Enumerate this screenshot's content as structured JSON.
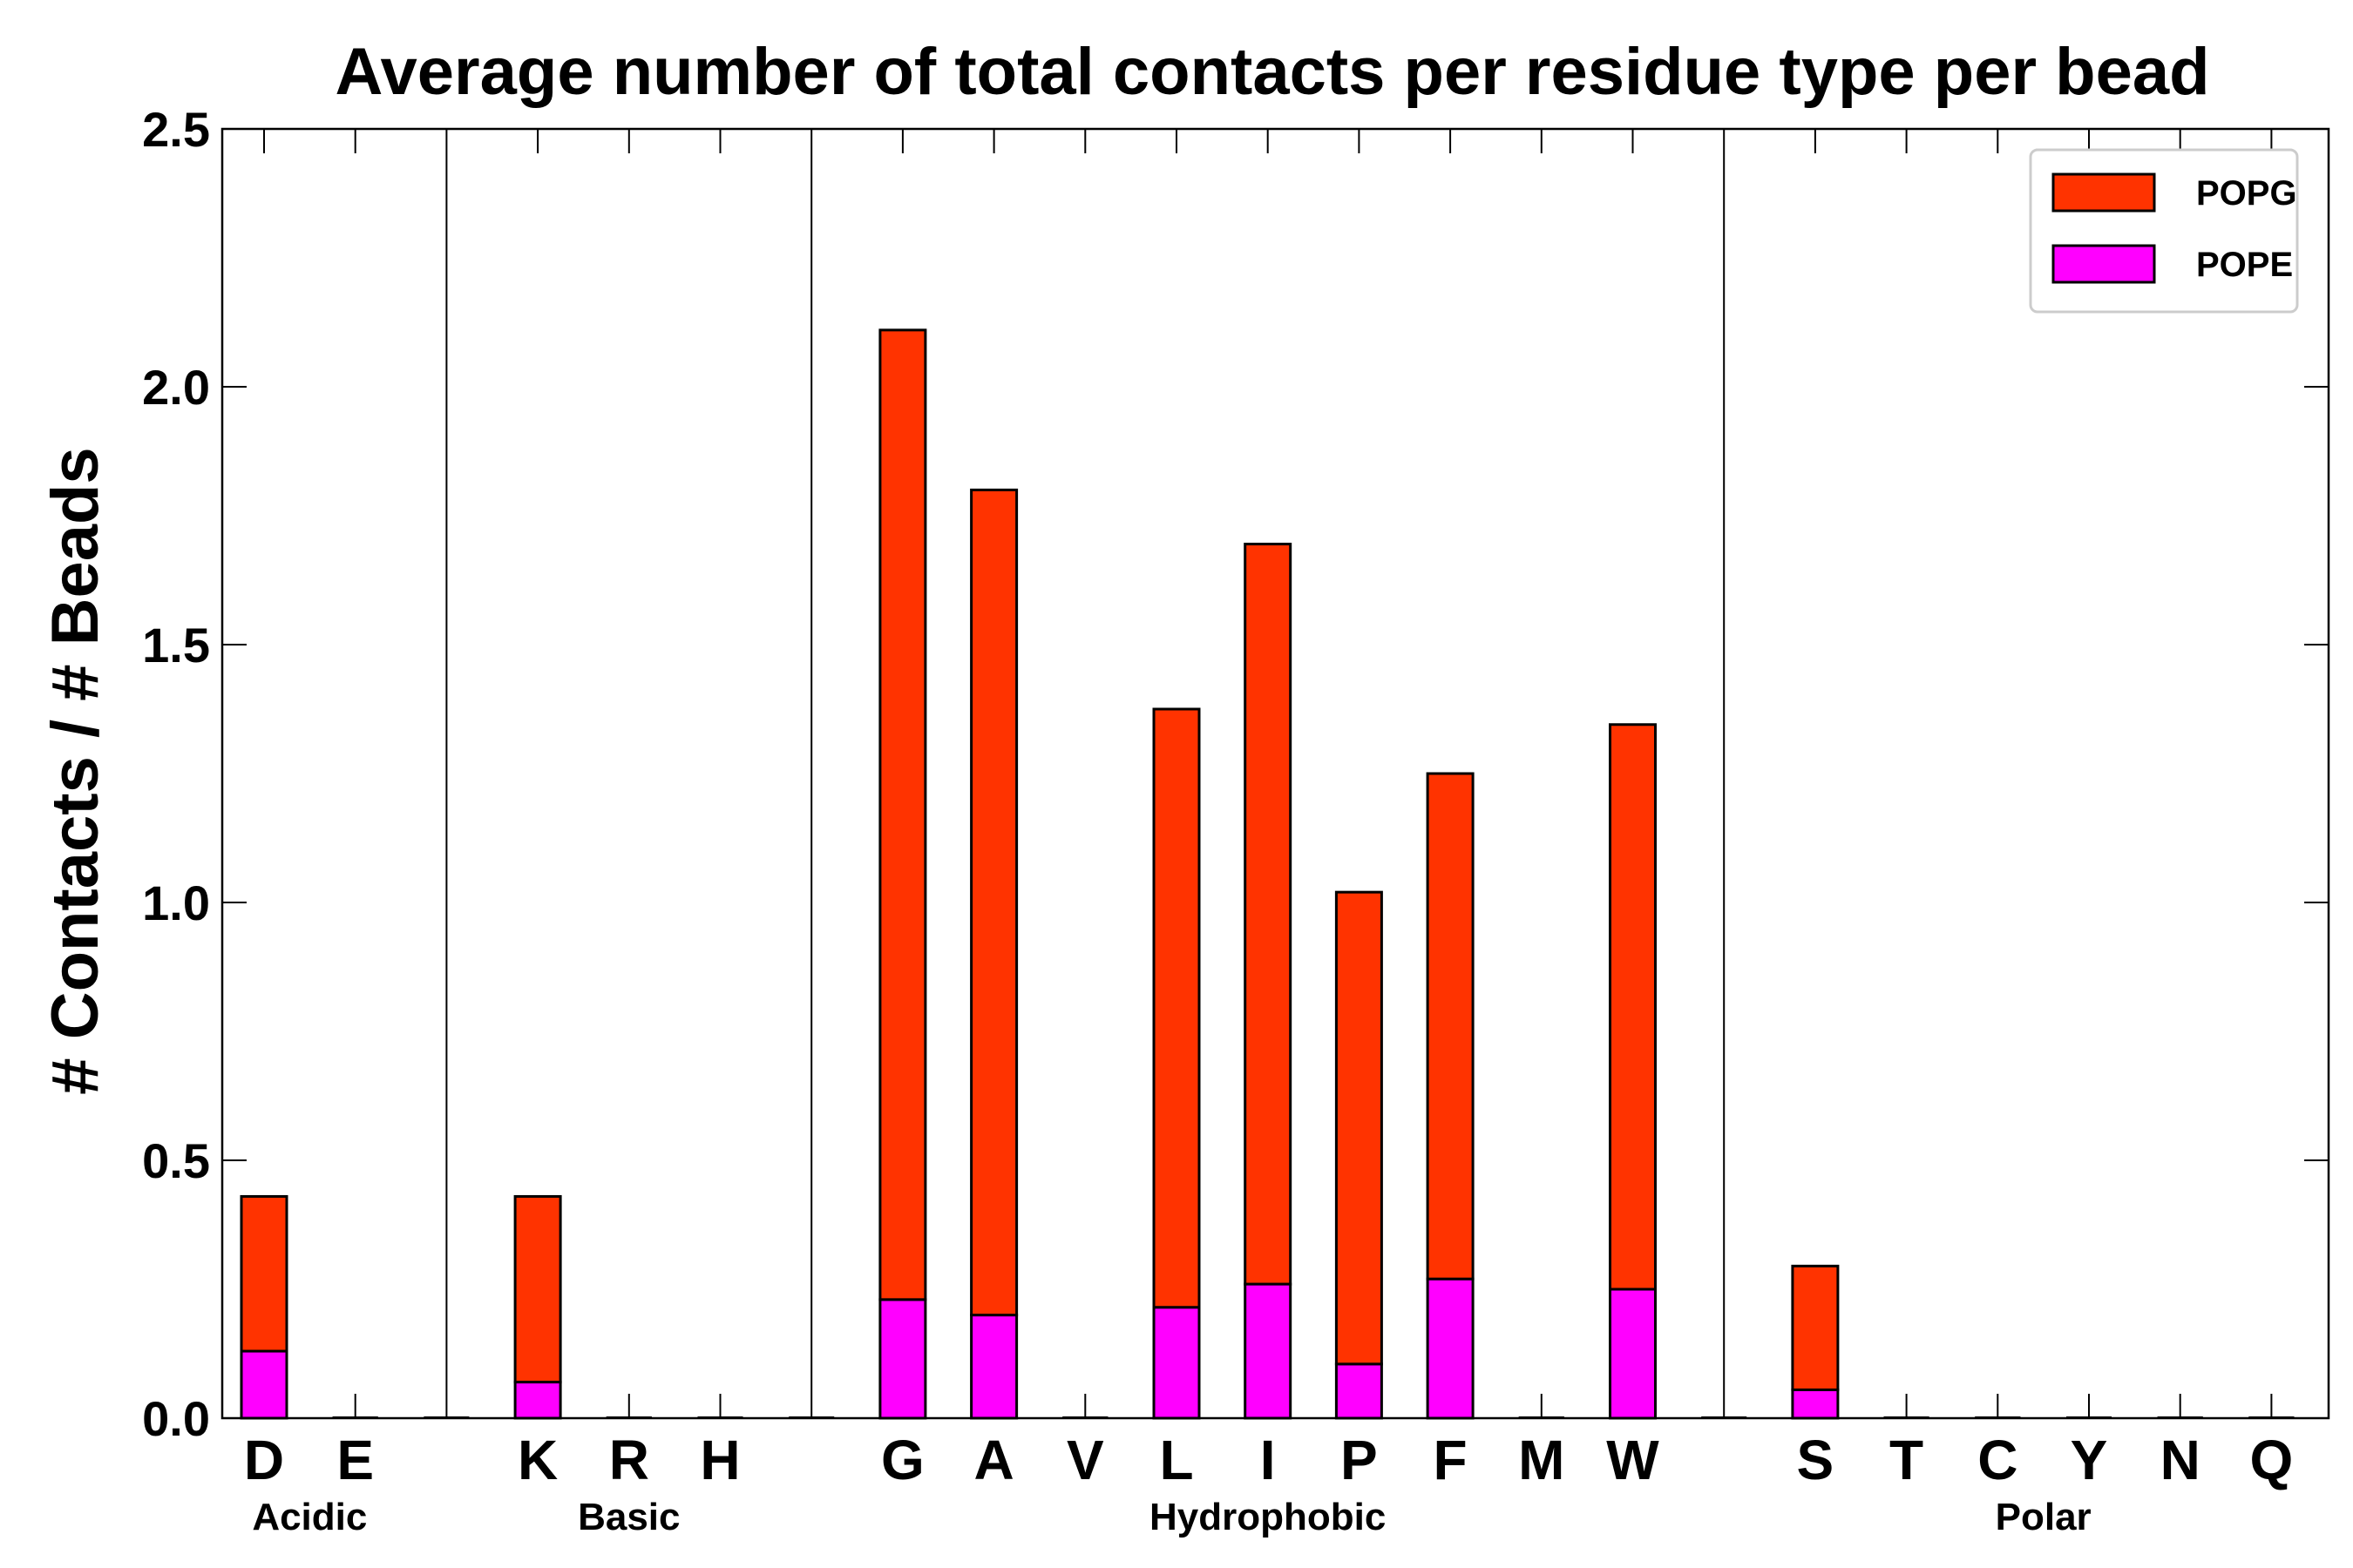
{
  "chart_data": {
    "type": "bar",
    "stacked": true,
    "title": "Average number of total contacts per residue type per bead",
    "xlabel": "",
    "ylabel": "# Contacts / # Beads",
    "ylim": [
      0,
      2.5
    ],
    "yticks": [
      "0.0",
      "0.5",
      "1.0",
      "1.5",
      "2.0",
      "2.5"
    ],
    "ytick_values": [
      0,
      0.5,
      1.0,
      1.5,
      2.0,
      2.5
    ],
    "grid": false,
    "legend_position": "top-right",
    "categories": [
      "D",
      "E",
      "K",
      "R",
      "H",
      "G",
      "A",
      "V",
      "L",
      "I",
      "P",
      "F",
      "M",
      "W",
      "S",
      "T",
      "C",
      "Y",
      "N",
      "Q"
    ],
    "groups": [
      {
        "name": "Acidic",
        "members": [
          "D",
          "E"
        ]
      },
      {
        "name": "Basic",
        "members": [
          "K",
          "R",
          "H"
        ]
      },
      {
        "name": "Hydrophobic",
        "members": [
          "G",
          "A",
          "V",
          "L",
          "I",
          "P",
          "F",
          "M",
          "W"
        ]
      },
      {
        "name": "Polar",
        "members": [
          "S",
          "T",
          "C",
          "Y",
          "N",
          "Q"
        ]
      }
    ],
    "series": [
      {
        "name": "POPE",
        "color": "#ff00ff",
        "values": [
          0.13,
          0,
          0.07,
          0,
          0,
          0.23,
          0.2,
          0,
          0.215,
          0.26,
          0.105,
          0.27,
          0,
          0.25,
          0.055,
          0,
          0,
          0,
          0,
          0
        ]
      },
      {
        "name": "POPG",
        "color": "#ff3300",
        "values": [
          0.3,
          0,
          0.36,
          0,
          0,
          1.88,
          1.6,
          0,
          1.16,
          1.435,
          0.915,
          0.98,
          0,
          1.095,
          0.24,
          0,
          0,
          0,
          0,
          0
        ]
      }
    ],
    "legend": [
      {
        "name": "POPG",
        "color": "#ff3300"
      },
      {
        "name": "POPE",
        "color": "#ff00ff"
      }
    ]
  }
}
